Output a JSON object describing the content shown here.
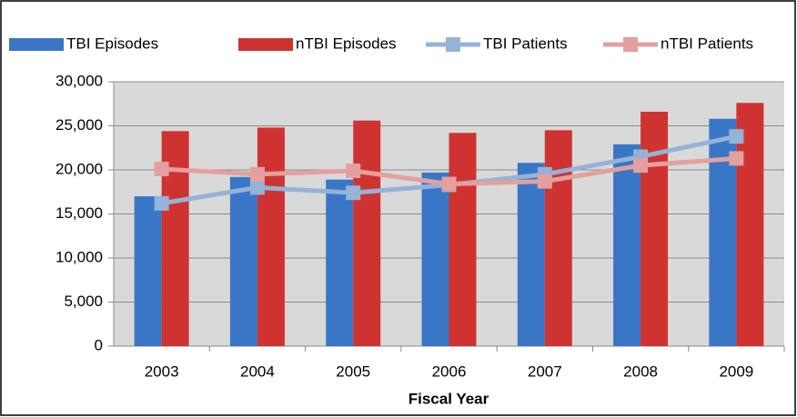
{
  "chart_data": {
    "type": "bar",
    "x_label": "Fiscal Year",
    "categories": [
      "2003",
      "2004",
      "2005",
      "2006",
      "2007",
      "2008",
      "2009"
    ],
    "series": [
      {
        "name": "TBI Episodes",
        "type": "bar",
        "color": "#3a76c6",
        "values": [
          17000,
          19200,
          18900,
          19700,
          20800,
          22900,
          25800
        ]
      },
      {
        "name": "nTBI Episodes",
        "type": "bar",
        "color": "#cf3331",
        "values": [
          24400,
          24800,
          25600,
          24200,
          24500,
          26600,
          27600
        ]
      },
      {
        "name": "TBI Patients",
        "type": "line",
        "color": "#95b3d7",
        "values": [
          16200,
          18000,
          17400,
          18300,
          19500,
          21500,
          23800
        ]
      },
      {
        "name": "nTBI Patients",
        "type": "line",
        "color": "#e3a09e",
        "values": [
          20100,
          19500,
          19900,
          18400,
          18700,
          20500,
          21300
        ]
      }
    ],
    "ylim": [
      0,
      30000
    ],
    "yticks": [
      0,
      {
        "value": 5000,
        "label": "5,000"
      },
      {
        "value": 10000,
        "label": "10,000"
      },
      {
        "value": 15000,
        "label": "15,000"
      },
      {
        "value": 20000,
        "label": "20,000"
      },
      {
        "value": 25000,
        "label": "25,000"
      },
      {
        "value": 30000,
        "label": "30,000"
      }
    ],
    "grid": true,
    "legend": "top"
  }
}
